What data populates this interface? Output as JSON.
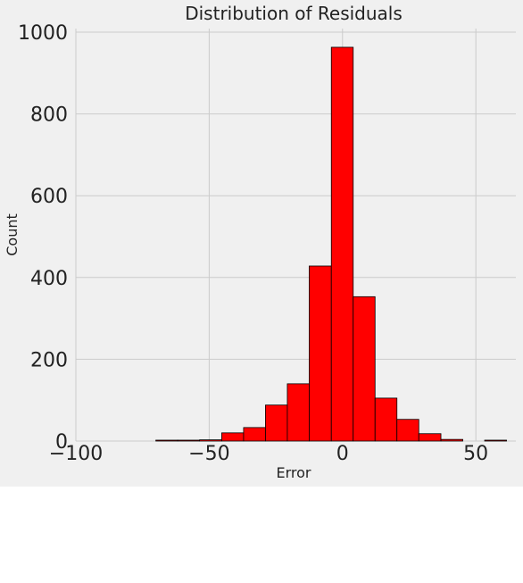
{
  "chart_data": {
    "type": "bar",
    "title": "Distribution of Residuals",
    "xlabel": "Error",
    "ylabel": "Count",
    "xlim": [
      -100,
      65
    ],
    "ylim": [
      0,
      1000
    ],
    "x_ticks": [
      -100,
      -50,
      0,
      50
    ],
    "x_tick_labels": [
      "−100",
      "−50",
      "0",
      "50"
    ],
    "y_ticks": [
      0,
      200,
      400,
      600,
      800,
      1000
    ],
    "y_tick_labels": [
      "0",
      "200",
      "400",
      "600",
      "800",
      "1000"
    ],
    "grid": true,
    "bar_color": "#ff0000",
    "edge_color": "#000000",
    "background": "#f0f0f0",
    "grid_color": "#cbcbcb",
    "bins": [
      {
        "x0": -70.0,
        "x1": -61.8,
        "value": 1
      },
      {
        "x0": -61.8,
        "x1": -53.6,
        "value": 1
      },
      {
        "x0": -53.6,
        "x1": -45.3,
        "value": 3
      },
      {
        "x0": -45.3,
        "x1": -37.1,
        "value": 20
      },
      {
        "x0": -37.1,
        "x1": -28.9,
        "value": 33
      },
      {
        "x0": -28.9,
        "x1": -20.7,
        "value": 88
      },
      {
        "x0": -20.7,
        "x1": -12.5,
        "value": 140
      },
      {
        "x0": -12.5,
        "x1": -4.2,
        "value": 428
      },
      {
        "x0": -4.2,
        "x1": 4.0,
        "value": 963
      },
      {
        "x0": 4.0,
        "x1": 12.2,
        "value": 353
      },
      {
        "x0": 12.2,
        "x1": 20.4,
        "value": 105
      },
      {
        "x0": 20.4,
        "x1": 28.6,
        "value": 53
      },
      {
        "x0": 28.6,
        "x1": 36.9,
        "value": 18
      },
      {
        "x0": 36.9,
        "x1": 45.1,
        "value": 4
      },
      {
        "x0": 45.1,
        "x1": 53.3,
        "value": 0
      },
      {
        "x0": 53.3,
        "x1": 61.5,
        "value": 1
      }
    ]
  }
}
